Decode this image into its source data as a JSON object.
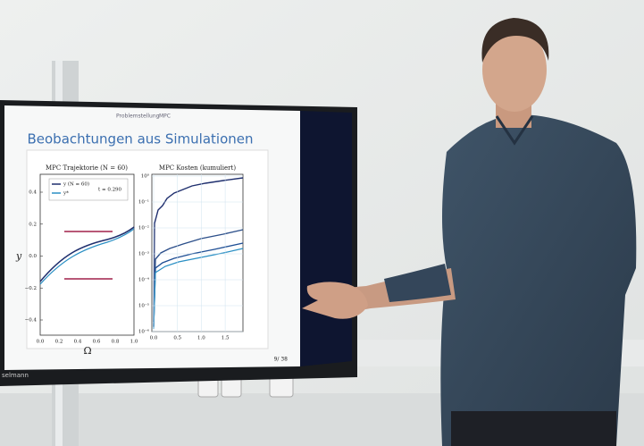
{
  "slide": {
    "breadcrumb": [
      "Problemstellung",
      "MPC"
    ],
    "title": "Beobachtungen aus Simulationen",
    "page": "9/ 38",
    "footer_author": "selmann"
  },
  "left_plot": {
    "title": "MPC Trajektorie (N = 60)",
    "legend": [
      "y (N = 60)",
      "y*"
    ],
    "annotation": "t = 0.290",
    "ylabel": "y",
    "xlabel": "Ω",
    "yticks": [
      "0.4",
      "0.2",
      "0.0",
      "−0.2",
      "−0.4"
    ],
    "xticks": [
      "0.0",
      "0.2",
      "0.4",
      "0.6",
      "0.8",
      "1.0"
    ]
  },
  "right_plot": {
    "title": "MPC Kosten (kumuliert)",
    "yticks": [
      "10⁰",
      "10⁻¹",
      "10⁻²",
      "10⁻³",
      "10⁻⁴",
      "10⁻⁵",
      "10⁻⁶"
    ],
    "xticks": [
      "0.0",
      "0.5",
      "1.0",
      "1.5"
    ]
  }
}
